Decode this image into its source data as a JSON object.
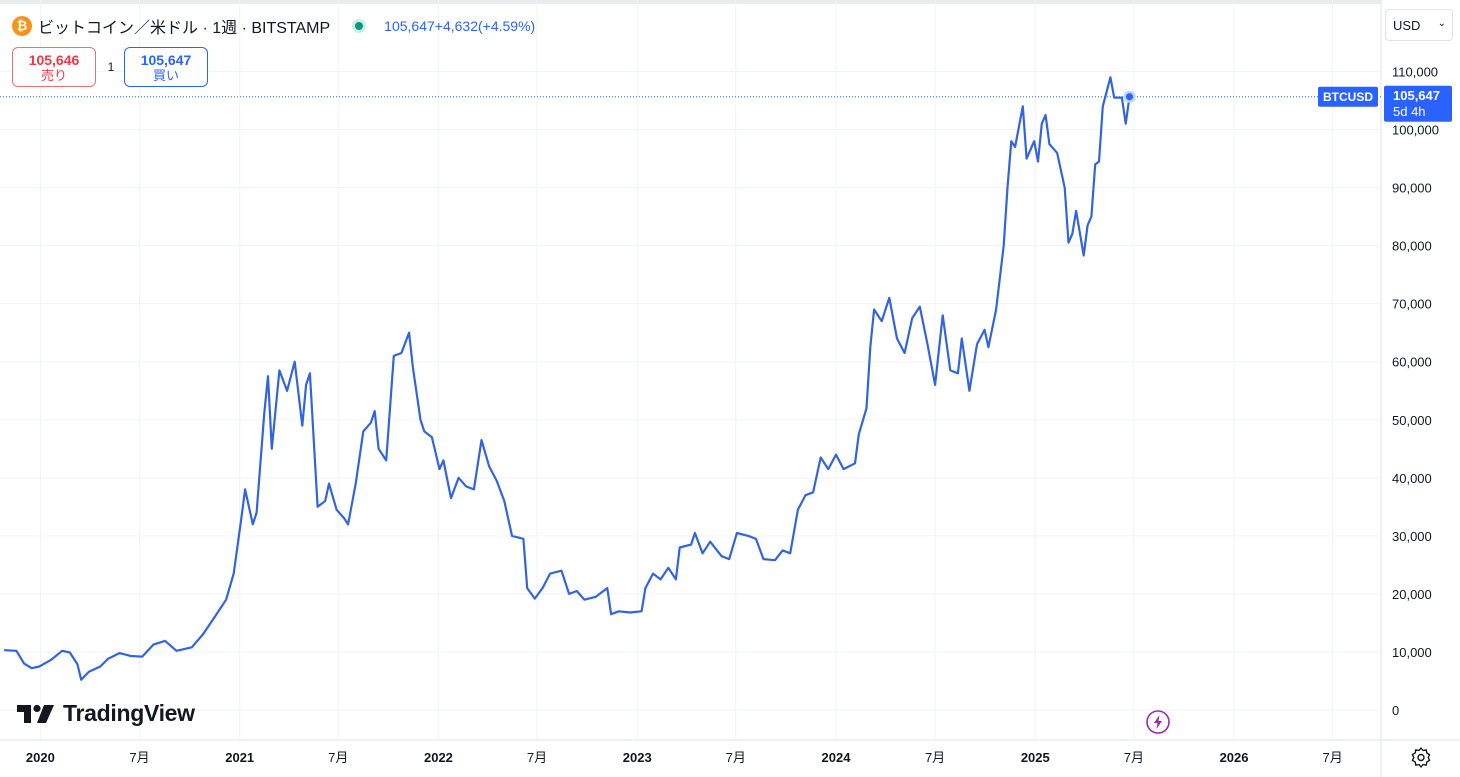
{
  "header": {
    "symbol_icon": "bitcoin-icon",
    "title": "ビットコイン／米ドル · 1週 · BITSTAMP",
    "market_status": "open",
    "price": "105,647",
    "change": "+4,632",
    "change_pct": "(+4.59%)"
  },
  "trade": {
    "sell_price": "105,646",
    "sell_label": "売り",
    "spread": "1",
    "buy_price": "105,647",
    "buy_label": "買い"
  },
  "currency_selector": {
    "value": "USD"
  },
  "price_tag": {
    "symbol": "BTCUSD",
    "price": "105,647",
    "countdown": "5d 4h"
  },
  "branding": {
    "logo_text": "TradingView"
  },
  "colors": {
    "line": "#3264e0",
    "sell": "#f23645",
    "buy": "#2962ff",
    "grid": "#f0f3fa",
    "tag_bg": "#2962ff"
  },
  "chart_data": {
    "type": "line",
    "series": [
      {
        "points": [
          [
            "2019-10-28",
            10300
          ],
          [
            "2019-11-18",
            10200
          ],
          [
            "2019-12-02",
            8000
          ],
          [
            "2019-12-16",
            7200
          ],
          [
            "2019-12-30",
            7500
          ],
          [
            "2020-01-20",
            8600
          ],
          [
            "2020-02-10",
            10200
          ],
          [
            "2020-02-24",
            9900
          ],
          [
            "2020-03-09",
            7900
          ],
          [
            "2020-03-16",
            5200
          ],
          [
            "2020-03-30",
            6600
          ],
          [
            "2020-04-20",
            7500
          ],
          [
            "2020-05-04",
            8800
          ],
          [
            "2020-05-25",
            9800
          ],
          [
            "2020-06-15",
            9300
          ],
          [
            "2020-07-06",
            9200
          ],
          [
            "2020-07-27",
            11300
          ],
          [
            "2020-08-17",
            11900
          ],
          [
            "2020-09-07",
            10200
          ],
          [
            "2020-10-05",
            10800
          ],
          [
            "2020-10-26",
            13100
          ],
          [
            "2020-11-16",
            16000
          ],
          [
            "2020-12-07",
            19000
          ],
          [
            "2020-12-21",
            23500
          ],
          [
            "2021-01-04",
            33000
          ],
          [
            "2021-01-11",
            38000
          ],
          [
            "2021-01-25",
            32000
          ],
          [
            "2021-02-01",
            34000
          ],
          [
            "2021-02-15",
            51000
          ],
          [
            "2021-02-22",
            57500
          ],
          [
            "2021-03-01",
            45000
          ],
          [
            "2021-03-15",
            58500
          ],
          [
            "2021-03-29",
            55000
          ],
          [
            "2021-04-12",
            60000
          ],
          [
            "2021-04-26",
            49000
          ],
          [
            "2021-05-03",
            56000
          ],
          [
            "2021-05-10",
            58000
          ],
          [
            "2021-05-24",
            35000
          ],
          [
            "2021-06-07",
            36000
          ],
          [
            "2021-06-14",
            39000
          ],
          [
            "2021-06-28",
            34500
          ],
          [
            "2021-07-12",
            33000
          ],
          [
            "2021-07-19",
            32000
          ],
          [
            "2021-08-02",
            39000
          ],
          [
            "2021-08-16",
            48000
          ],
          [
            "2021-08-30",
            49500
          ],
          [
            "2021-09-06",
            51500
          ],
          [
            "2021-09-13",
            45000
          ],
          [
            "2021-09-27",
            43000
          ],
          [
            "2021-10-11",
            61000
          ],
          [
            "2021-10-25",
            61500
          ],
          [
            "2021-11-08",
            65000
          ],
          [
            "2021-11-15",
            59000
          ],
          [
            "2021-11-29",
            50000
          ],
          [
            "2021-12-06",
            48000
          ],
          [
            "2021-12-20",
            47000
          ],
          [
            "2022-01-03",
            41500
          ],
          [
            "2022-01-10",
            43000
          ],
          [
            "2022-01-24",
            36500
          ],
          [
            "2022-02-07",
            40000
          ],
          [
            "2022-02-21",
            38500
          ],
          [
            "2022-03-07",
            38000
          ],
          [
            "2022-03-21",
            46500
          ],
          [
            "2022-04-04",
            42000
          ],
          [
            "2022-04-18",
            39500
          ],
          [
            "2022-05-02",
            36000
          ],
          [
            "2022-05-16",
            30000
          ],
          [
            "2022-06-06",
            29500
          ],
          [
            "2022-06-13",
            21000
          ],
          [
            "2022-06-27",
            19200
          ],
          [
            "2022-07-11",
            21000
          ],
          [
            "2022-07-25",
            23500
          ],
          [
            "2022-08-15",
            24000
          ],
          [
            "2022-08-29",
            20000
          ],
          [
            "2022-09-12",
            20500
          ],
          [
            "2022-09-26",
            19000
          ],
          [
            "2022-10-17",
            19500
          ],
          [
            "2022-11-07",
            21000
          ],
          [
            "2022-11-14",
            16500
          ],
          [
            "2022-11-28",
            17000
          ],
          [
            "2022-12-19",
            16800
          ],
          [
            "2023-01-09",
            17000
          ],
          [
            "2023-01-16",
            21000
          ],
          [
            "2023-01-30",
            23500
          ],
          [
            "2023-02-13",
            22500
          ],
          [
            "2023-02-27",
            24500
          ],
          [
            "2023-03-13",
            22500
          ],
          [
            "2023-03-20",
            28000
          ],
          [
            "2023-04-10",
            28500
          ],
          [
            "2023-04-17",
            30500
          ],
          [
            "2023-05-01",
            27000
          ],
          [
            "2023-05-15",
            29000
          ],
          [
            "2023-06-05",
            26500
          ],
          [
            "2023-06-19",
            26000
          ],
          [
            "2023-07-03",
            30500
          ],
          [
            "2023-07-24",
            30000
          ],
          [
            "2023-08-07",
            29500
          ],
          [
            "2023-08-21",
            26000
          ],
          [
            "2023-09-11",
            25800
          ],
          [
            "2023-09-25",
            27500
          ],
          [
            "2023-10-09",
            27000
          ],
          [
            "2023-10-23",
            34500
          ],
          [
            "2023-11-06",
            37000
          ],
          [
            "2023-11-20",
            37500
          ],
          [
            "2023-12-04",
            43500
          ],
          [
            "2023-12-18",
            41500
          ],
          [
            "2024-01-01",
            44000
          ],
          [
            "2024-01-15",
            41500
          ],
          [
            "2024-02-05",
            42500
          ],
          [
            "2024-02-12",
            47500
          ],
          [
            "2024-02-26",
            52000
          ],
          [
            "2024-03-04",
            62500
          ],
          [
            "2024-03-11",
            69000
          ],
          [
            "2024-03-25",
            67000
          ],
          [
            "2024-04-08",
            71000
          ],
          [
            "2024-04-22",
            64000
          ],
          [
            "2024-05-06",
            61500
          ],
          [
            "2024-05-20",
            67500
          ],
          [
            "2024-06-03",
            69500
          ],
          [
            "2024-06-17",
            63000
          ],
          [
            "2024-07-01",
            56000
          ],
          [
            "2024-07-15",
            68000
          ],
          [
            "2024-07-29",
            58500
          ],
          [
            "2024-08-12",
            58000
          ],
          [
            "2024-08-19",
            64000
          ],
          [
            "2024-09-02",
            55000
          ],
          [
            "2024-09-16",
            63000
          ],
          [
            "2024-09-30",
            65500
          ],
          [
            "2024-10-07",
            62500
          ],
          [
            "2024-10-21",
            69000
          ],
          [
            "2024-11-04",
            80000
          ],
          [
            "2024-11-11",
            90000
          ],
          [
            "2024-11-18",
            98000
          ],
          [
            "2024-11-25",
            97000
          ],
          [
            "2024-12-09",
            104000
          ],
          [
            "2024-12-16",
            95000
          ],
          [
            "2024-12-30",
            98000
          ],
          [
            "2025-01-06",
            94500
          ],
          [
            "2025-01-13",
            101000
          ],
          [
            "2025-01-20",
            102500
          ],
          [
            "2025-01-27",
            97500
          ],
          [
            "2025-02-10",
            96000
          ],
          [
            "2025-02-24",
            90000
          ],
          [
            "2025-03-03",
            80500
          ],
          [
            "2025-03-10",
            82000
          ],
          [
            "2025-03-17",
            86000
          ],
          [
            "2025-03-31",
            78300
          ],
          [
            "2025-04-07",
            83500
          ],
          [
            "2025-04-14",
            85000
          ],
          [
            "2025-04-21",
            94000
          ],
          [
            "2025-04-28",
            94500
          ],
          [
            "2025-05-05",
            104000
          ],
          [
            "2025-05-19",
            109000
          ],
          [
            "2025-05-26",
            105500
          ],
          [
            "2025-06-09",
            105500
          ],
          [
            "2025-06-16",
            101000
          ],
          [
            "2025-06-23",
            105647
          ]
        ]
      }
    ],
    "ylim": [
      -2000,
      114000
    ],
    "y_ticks": [
      0,
      10000,
      20000,
      30000,
      40000,
      50000,
      60000,
      70000,
      80000,
      90000,
      100000,
      110000
    ],
    "y_tick_labels": [
      "0",
      "10,000",
      "20,000",
      "30,000",
      "40,000",
      "50,000",
      "60,000",
      "70,000",
      "80,000",
      "90,000",
      "100,000",
      "110,000"
    ],
    "xlim": [
      "2019-10-28",
      "2026-08-24"
    ],
    "x_ticks": [
      "2020-01-01",
      "2020-07-01",
      "2021-01-01",
      "2021-07-01",
      "2022-01-01",
      "2022-07-01",
      "2023-01-01",
      "2023-07-01",
      "2024-01-01",
      "2024-07-01",
      "2025-01-01",
      "2025-07-01",
      "2026-01-01",
      "2026-07-01"
    ],
    "x_tick_labels": [
      "2020",
      "7月",
      "2021",
      "7月",
      "2022",
      "7月",
      "2023",
      "7月",
      "2024",
      "7月",
      "2025",
      "7月",
      "2026",
      "7月"
    ],
    "x_tick_bold": [
      true,
      false,
      true,
      false,
      true,
      false,
      true,
      false,
      true,
      false,
      true,
      false,
      true,
      false
    ],
    "last_price": 105647,
    "grid": true
  }
}
